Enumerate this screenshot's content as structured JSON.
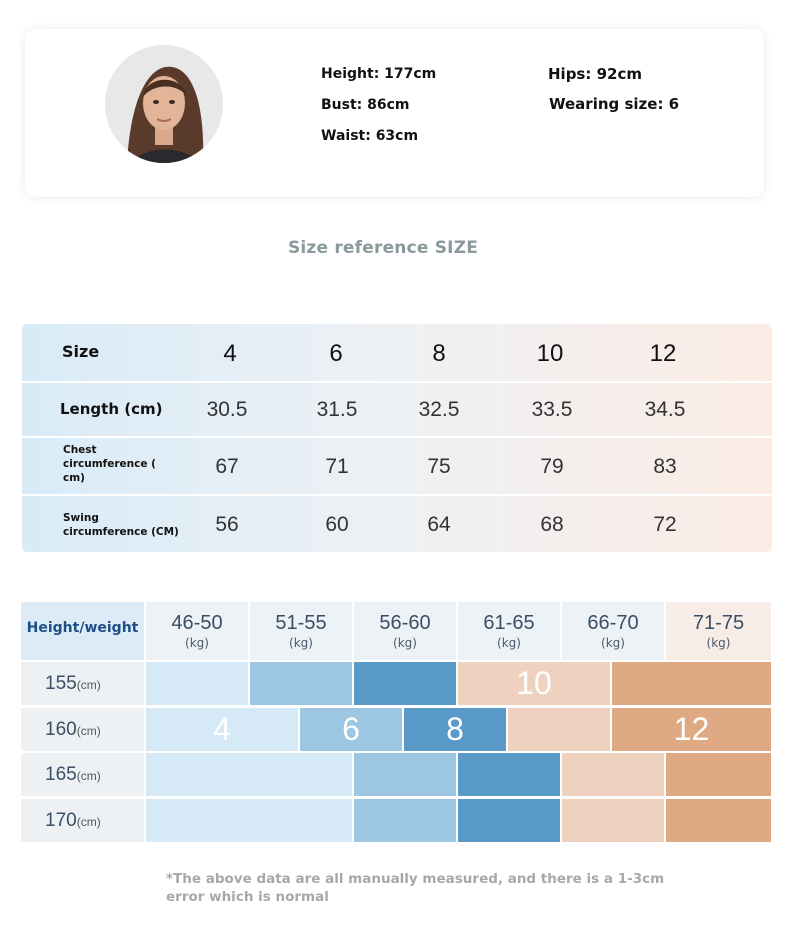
{
  "model": {
    "height": "Height: 177cm",
    "bust": "Bust: 86cm",
    "waist": "Waist: 63cm",
    "hips": "Hips: 92cm",
    "wearing_size": "Wearing size: 6"
  },
  "section_title": "Size reference SIZE",
  "size_table": {
    "sizes_label": "Size",
    "sizes": [
      "4",
      "6",
      "8",
      "10",
      "12"
    ],
    "rows": [
      {
        "label": "Length (cm)",
        "values": [
          "30.5",
          "31.5",
          "32.5",
          "33.5",
          "34.5"
        ]
      },
      {
        "label": "Chest circumference ( cm)",
        "values": [
          "67",
          "71",
          "75",
          "79",
          "83"
        ]
      },
      {
        "label": "Swing circumference (CM)",
        "values": [
          "56",
          "60",
          "64",
          "68",
          "72"
        ]
      }
    ]
  },
  "height_weight": {
    "title": "Height/weight",
    "weight_unit": "(kg)",
    "height_unit": "(cm)",
    "weights": [
      "46-50",
      "51-55",
      "56-60",
      "61-65",
      "66-70",
      "71-75"
    ],
    "heights": [
      "155",
      "160",
      "165",
      "170"
    ],
    "size_labels": [
      "10",
      "4",
      "6",
      "8",
      "12"
    ]
  },
  "footnote": "*The above data are all manually measured, and there is a 1-3cm error which is normal",
  "colors": {
    "size_4": "#d6e9f7",
    "size_6": "#9cc6e2",
    "size_8": "#5a9ac8",
    "size_10": "#efd1bf",
    "size_12": "#dfa983"
  }
}
